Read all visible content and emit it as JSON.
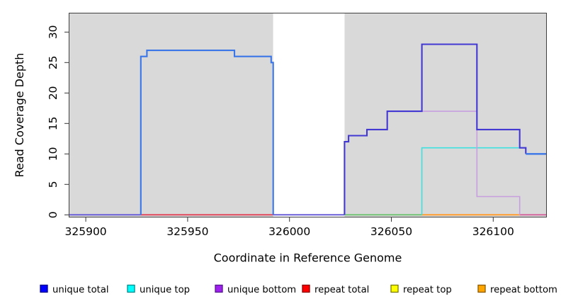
{
  "chart_data": {
    "type": "line",
    "subtype": "step-coverage-plot",
    "title": "",
    "xlabel": "Coordinate in Reference Genome",
    "ylabel": "Read Coverage Depth",
    "xlim": [
      325892,
      326126
    ],
    "ylim": [
      0,
      33
    ],
    "x_ticks": [
      325900,
      325950,
      326000,
      326050,
      326100
    ],
    "y_ticks": [
      0,
      5,
      10,
      15,
      20,
      25,
      30
    ],
    "grid": false,
    "legend_position": "bottom",
    "panel_color": "#d9d9d9",
    "uncovered_gap_x": [
      325992,
      326027
    ],
    "series": [
      {
        "name": "unique total",
        "legend_color": "#0000ff",
        "legend_border": "#00008b",
        "steps": [
          [
            325892,
            0
          ],
          [
            325927,
            26
          ],
          [
            325930,
            27
          ],
          [
            325973,
            26
          ],
          [
            325991,
            25
          ],
          [
            325992,
            0
          ],
          [
            326027,
            12
          ],
          [
            326029,
            13
          ],
          [
            326038,
            14
          ],
          [
            326048,
            17
          ],
          [
            326065,
            28
          ],
          [
            326092,
            14
          ],
          [
            326113,
            11
          ],
          [
            326116,
            10
          ],
          [
            326126,
            10
          ]
        ]
      },
      {
        "name": "unique top",
        "legend_color": "#00ffff",
        "legend_border": "#008b8b",
        "steps": [
          [
            325892,
            0
          ],
          [
            326065,
            11
          ],
          [
            326114,
            10
          ],
          [
            326126,
            10
          ]
        ]
      },
      {
        "name": "unique bottom",
        "legend_color": "#a020f0",
        "legend_border": "#551a8b",
        "steps": [
          [
            325892,
            0
          ],
          [
            326027,
            12
          ],
          [
            326029,
            13
          ],
          [
            326038,
            14
          ],
          [
            326048,
            17
          ],
          [
            326092,
            3
          ],
          [
            326113,
            0
          ],
          [
            326126,
            0
          ]
        ]
      },
      {
        "name": "repeat total",
        "legend_color": "#ff0000",
        "legend_border": "#8b0000",
        "steps": [
          [
            325892,
            0
          ],
          [
            326126,
            0
          ]
        ]
      },
      {
        "name": "repeat top",
        "legend_color": "#ffff00",
        "legend_border": "#7a7a00",
        "steps": [
          [
            325892,
            0
          ],
          [
            326126,
            0
          ]
        ]
      },
      {
        "name": "repeat bottom",
        "legend_color": "#ffa500",
        "legend_border": "#8b5a00",
        "steps": [
          [
            325892,
            0
          ],
          [
            326126,
            0
          ]
        ]
      }
    ],
    "paint": {
      "zero_segments": [
        {
          "name": "baseline-unique-blend",
          "color": "#6b5fd8",
          "x": [
            325892,
            325927
          ]
        },
        {
          "name": "baseline-repeat-total",
          "color": "#e0485c",
          "x": [
            325927,
            325992
          ]
        },
        {
          "name": "baseline-unique-blend-gap",
          "color": "#6b5fd8",
          "x": [
            325992,
            326027
          ]
        },
        {
          "name": "baseline-top-blend",
          "color": "#74c476",
          "x": [
            326027,
            326065
          ]
        },
        {
          "name": "baseline-repeat-bottom",
          "color": "#ff9d2e",
          "x": [
            326065,
            326113
          ]
        },
        {
          "name": "baseline-bottom-blend",
          "color": "#d4679e",
          "x": [
            326113,
            326126
          ]
        }
      ],
      "polylines": [
        {
          "name": "unique-top-line",
          "color": "#3fe0e0",
          "width": 1.6,
          "points": [
            [
              326065,
              0
            ],
            [
              326065,
              11
            ],
            [
              326114,
              11
            ]
          ]
        },
        {
          "name": "unique-bottom-line",
          "color": "#c79fdf",
          "width": 1.6,
          "points": [
            [
              326064.5,
              17
            ],
            [
              326092,
              17
            ],
            [
              326092,
              3
            ],
            [
              326113,
              3
            ],
            [
              326113,
              0
            ]
          ]
        },
        {
          "name": "unique-total-left-line",
          "color": "#3b76e8",
          "width": 2.1,
          "points": [
            [
              325927,
              0
            ],
            [
              325927,
              26
            ],
            [
              325930,
              26
            ],
            [
              325930,
              27
            ],
            [
              325973,
              27
            ],
            [
              325973,
              26
            ],
            [
              325991,
              26
            ],
            [
              325991,
              25
            ],
            [
              325992,
              25
            ],
            [
              325992,
              0
            ]
          ]
        },
        {
          "name": "unique-total-right-line",
          "color": "#4339d2",
          "width": 2.1,
          "points": [
            [
              326027,
              0
            ],
            [
              326027,
              12
            ],
            [
              326029,
              12
            ],
            [
              326029,
              13
            ],
            [
              326038,
              13
            ],
            [
              326038,
              14
            ],
            [
              326048,
              14
            ],
            [
              326048,
              17
            ],
            [
              326065,
              17
            ],
            [
              326065,
              28
            ],
            [
              326092,
              28
            ],
            [
              326092,
              14
            ],
            [
              326113,
              14
            ],
            [
              326113,
              11
            ],
            [
              326116,
              11
            ],
            [
              326116,
              10
            ]
          ]
        },
        {
          "name": "unique-total-right-tail",
          "color": "#3b76e8",
          "width": 2.4,
          "points": [
            [
              326116,
              10
            ],
            [
              326126,
              10
            ]
          ]
        }
      ]
    }
  }
}
